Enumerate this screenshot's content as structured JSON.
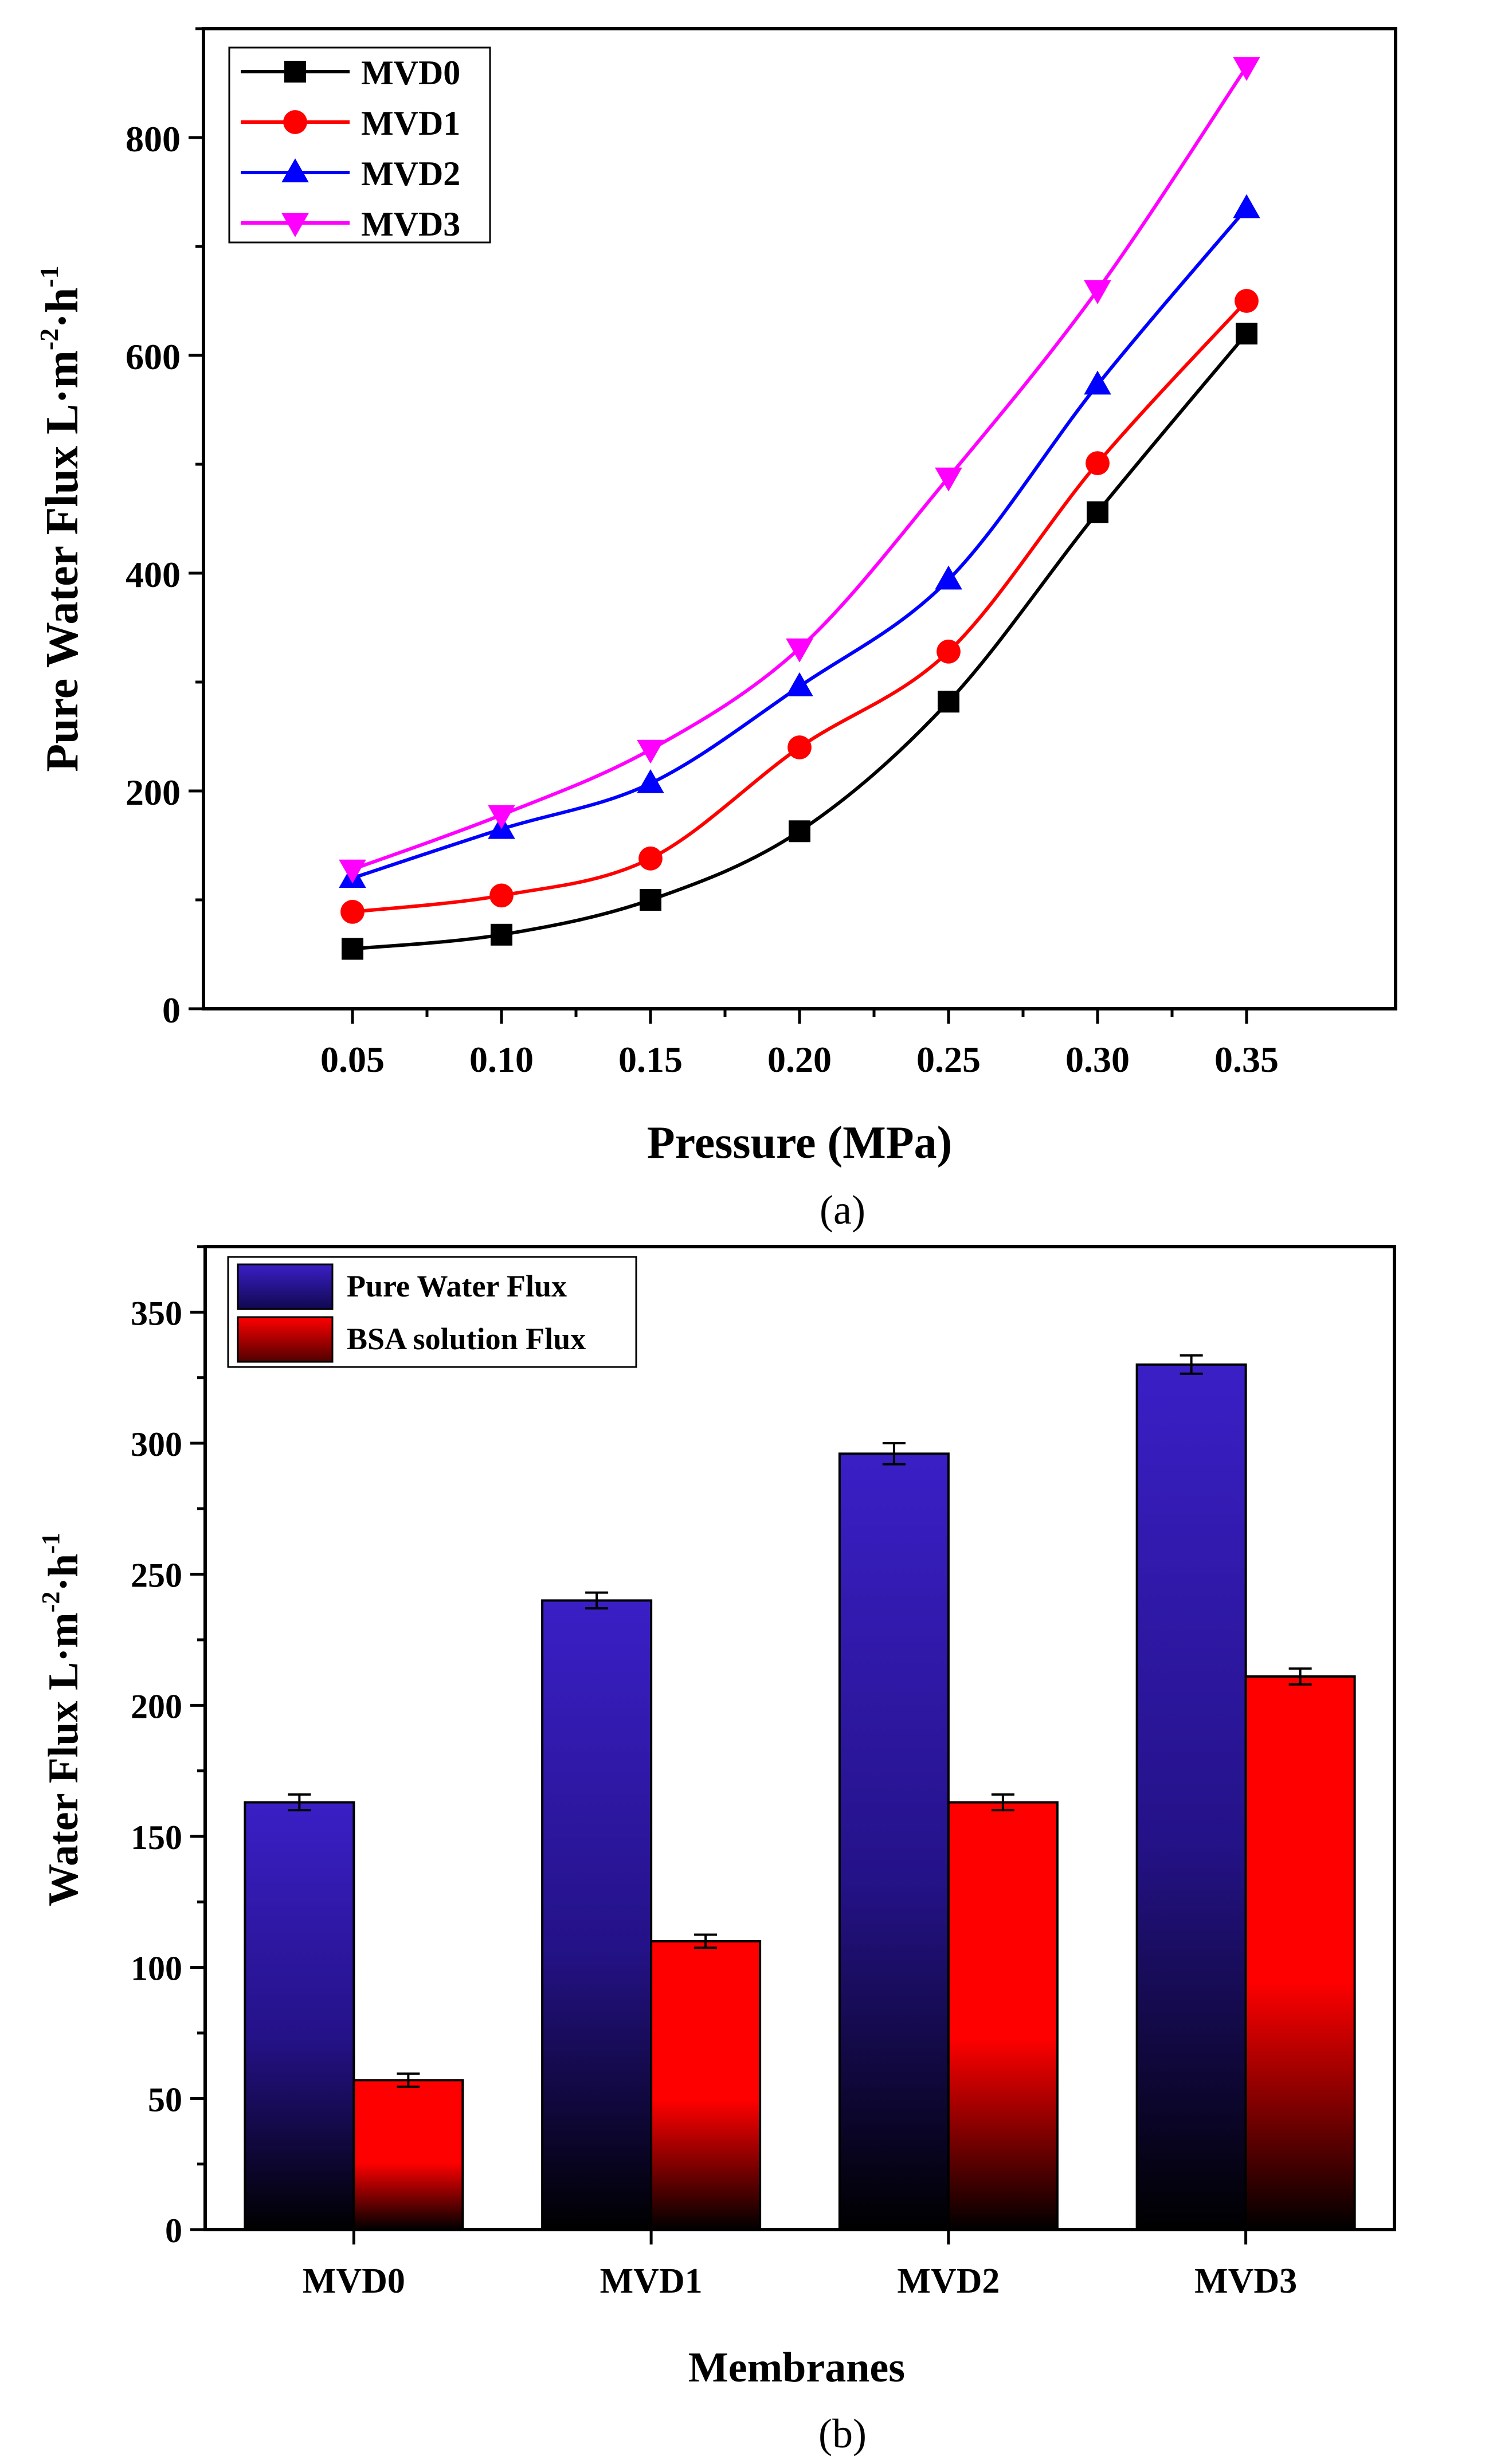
{
  "chart_data": [
    {
      "type": "line",
      "panel_label": "(a)",
      "xlabel": "Pressure (MPa)",
      "ylabel": "Pure Water Flux L·m-2·h-1",
      "ylabel_parts": {
        "main": "Pure Water Flux L·m",
        "sup1": "-2",
        "mid": "·h",
        "sup2": "-1"
      },
      "x": [
        0.05,
        0.1,
        0.15,
        0.2,
        0.25,
        0.3,
        0.35
      ],
      "x_tick_labels": [
        "0.05",
        "0.10",
        "0.15",
        "0.20",
        "0.25",
        "0.30",
        "0.35"
      ],
      "xlim": [
        0.0,
        0.4
      ],
      "ylim": [
        0,
        900
      ],
      "y_ticks": [
        0,
        200,
        400,
        600,
        800
      ],
      "legend_position": "top-left",
      "series": [
        {
          "name": "MVD0",
          "color": "#000000",
          "marker": "square",
          "values": [
            55,
            68,
            100,
            163,
            282,
            456,
            620
          ]
        },
        {
          "name": "MVD1",
          "color": "#ff0000",
          "marker": "circle",
          "values": [
            89,
            104,
            138,
            240,
            328,
            501,
            650
          ]
        },
        {
          "name": "MVD2",
          "color": "#0000ff",
          "marker": "triangle-up",
          "values": [
            120,
            165,
            207,
            296,
            394,
            573,
            735
          ]
        },
        {
          "name": "MVD3",
          "color": "#ff00ff",
          "marker": "triangle-down",
          "values": [
            128,
            178,
            238,
            331,
            488,
            660,
            865
          ]
        }
      ]
    },
    {
      "type": "bar",
      "panel_label": "(b)",
      "xlabel": "Membranes",
      "ylabel": "Water Flux L·m-2·h-1",
      "ylabel_parts": {
        "main": "Water Flux L·m",
        "sup1": "-2",
        "mid": "·h",
        "sup2": "-1"
      },
      "categories": [
        "MVD0",
        "MVD1",
        "MVD2",
        "MVD3"
      ],
      "ylim": [
        0,
        375
      ],
      "y_ticks": [
        0,
        50,
        100,
        150,
        200,
        250,
        300,
        350
      ],
      "legend_position": "top-left",
      "series": [
        {
          "name": "Pure Water Flux",
          "color_top": "#3a1fc6",
          "color_bottom": "#000000",
          "values": [
            163,
            240,
            296,
            330
          ],
          "errors": [
            3,
            3,
            4,
            3.5
          ]
        },
        {
          "name": "BSA solution Flux",
          "color_top": "#ff0000",
          "color_bottom": "#000000",
          "values": [
            57,
            110,
            163,
            211
          ],
          "errors": [
            2.5,
            2.5,
            3,
            3
          ]
        }
      ]
    }
  ]
}
